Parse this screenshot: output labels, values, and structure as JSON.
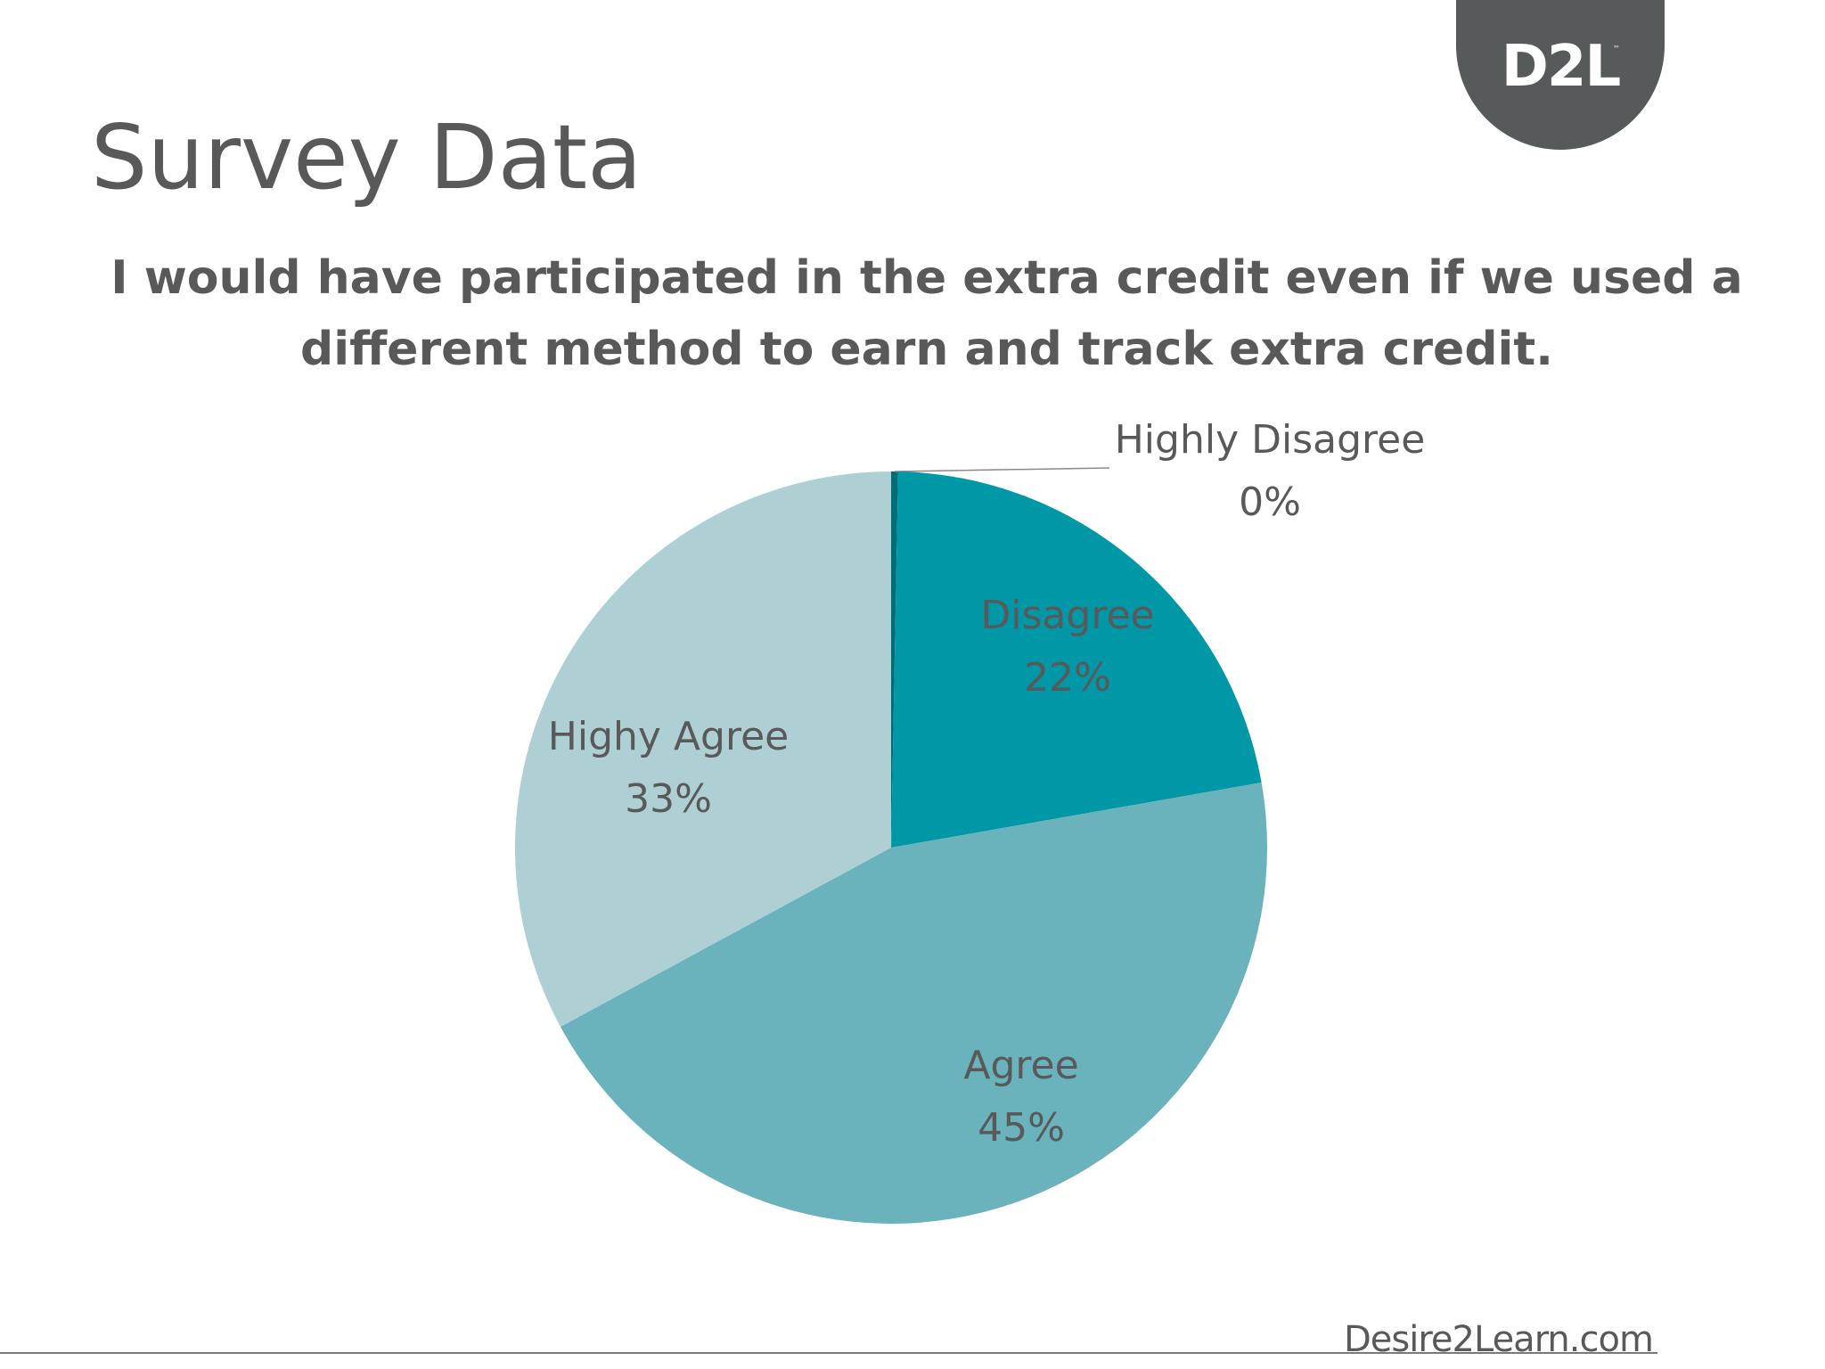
{
  "logo": {
    "text": "D2L",
    "tm": "™",
    "badge_color": "#575a5b"
  },
  "slide": {
    "title": "Survey Data",
    "question_line1": "I would have participated in the extra credit even if we used a",
    "question_line2": "different method to earn and track extra credit."
  },
  "chart_data": {
    "type": "pie",
    "title": "I would have participated in the extra credit even if we used a different method to earn and track extra credit.",
    "start_angle_deg": 0,
    "direction": "clockwise",
    "slices": [
      {
        "name": "Highly Disagree",
        "value": 0.3,
        "label": "0%",
        "color": "#006d77"
      },
      {
        "name": "Disagree",
        "value": 22,
        "label": "22%",
        "color": "#0097a7"
      },
      {
        "name": "Agree",
        "value": 45,
        "label": "45%",
        "color": "#6ab2bc"
      },
      {
        "name": "Highy Agree",
        "value": 33,
        "label": "33%",
        "color": "#aed0d5"
      }
    ]
  },
  "footer": {
    "brand": "Desire2Learn.com"
  }
}
